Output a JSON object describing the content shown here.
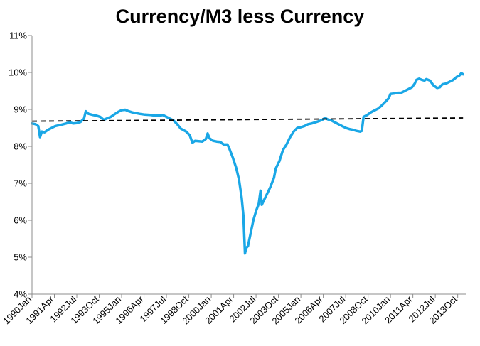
{
  "chart_data": {
    "type": "line",
    "title": "Currency/M3 less Currency",
    "xlabel": "",
    "ylabel": "",
    "ylim": [
      4,
      11
    ],
    "y_ticks": [
      4,
      5,
      6,
      7,
      8,
      9,
      10,
      11
    ],
    "y_tick_format": "percent",
    "x_range": [
      1990.0,
      2014.2
    ],
    "x_tick_labels": [
      {
        "label": "1990Jan",
        "x": 1990.0
      },
      {
        "label": "1991Apr",
        "x": 1991.25
      },
      {
        "label": "1992Jul",
        "x": 1992.5
      },
      {
        "label": "1993Oct",
        "x": 1993.75
      },
      {
        "label": "1995Jan",
        "x": 1995.0
      },
      {
        "label": "1996Apr",
        "x": 1996.25
      },
      {
        "label": "1997Jul",
        "x": 1997.5
      },
      {
        "label": "1998Oct",
        "x": 1998.75
      },
      {
        "label": "2000Jan",
        "x": 2000.0
      },
      {
        "label": "2001Apr",
        "x": 2001.25
      },
      {
        "label": "2002Jul",
        "x": 2002.5
      },
      {
        "label": "2003Oct",
        "x": 2003.75
      },
      {
        "label": "2005Jan",
        "x": 2005.0
      },
      {
        "label": "2006Apr",
        "x": 2006.25
      },
      {
        "label": "2007Jul",
        "x": 2007.5
      },
      {
        "label": "2008Oct",
        "x": 2008.75
      },
      {
        "label": "2010Jan",
        "x": 2010.0
      },
      {
        "label": "2011Apr",
        "x": 2011.25
      },
      {
        "label": "2012Jul",
        "x": 2012.5
      },
      {
        "label": "2013Oct",
        "x": 2013.75
      }
    ],
    "grid": false,
    "legend": "none",
    "series": [
      {
        "color": "#1aa7e6",
        "style": "solid",
        "points": [
          [
            1990.0,
            8.62
          ],
          [
            1990.2,
            8.6
          ],
          [
            1990.35,
            8.55
          ],
          [
            1990.45,
            8.25
          ],
          [
            1990.55,
            8.4
          ],
          [
            1990.7,
            8.38
          ],
          [
            1990.9,
            8.45
          ],
          [
            1991.1,
            8.5
          ],
          [
            1991.3,
            8.55
          ],
          [
            1991.6,
            8.58
          ],
          [
            1991.9,
            8.62
          ],
          [
            1992.1,
            8.65
          ],
          [
            1992.3,
            8.62
          ],
          [
            1992.5,
            8.63
          ],
          [
            1992.7,
            8.66
          ],
          [
            1992.9,
            8.75
          ],
          [
            1993.0,
            8.95
          ],
          [
            1993.15,
            8.88
          ],
          [
            1993.4,
            8.85
          ],
          [
            1993.6,
            8.83
          ],
          [
            1993.8,
            8.8
          ],
          [
            1994.0,
            8.72
          ],
          [
            1994.2,
            8.76
          ],
          [
            1994.4,
            8.8
          ],
          [
            1994.6,
            8.87
          ],
          [
            1994.8,
            8.93
          ],
          [
            1995.0,
            8.98
          ],
          [
            1995.2,
            8.99
          ],
          [
            1995.4,
            8.95
          ],
          [
            1995.6,
            8.92
          ],
          [
            1995.8,
            8.9
          ],
          [
            1996.0,
            8.88
          ],
          [
            1996.3,
            8.86
          ],
          [
            1996.6,
            8.85
          ],
          [
            1996.9,
            8.83
          ],
          [
            1997.1,
            8.83
          ],
          [
            1997.3,
            8.85
          ],
          [
            1997.5,
            8.8
          ],
          [
            1997.7,
            8.75
          ],
          [
            1997.9,
            8.7
          ],
          [
            1998.1,
            8.6
          ],
          [
            1998.3,
            8.48
          ],
          [
            1998.6,
            8.4
          ],
          [
            1998.8,
            8.3
          ],
          [
            1998.95,
            8.1
          ],
          [
            1999.1,
            8.15
          ],
          [
            1999.3,
            8.14
          ],
          [
            1999.5,
            8.13
          ],
          [
            1999.7,
            8.2
          ],
          [
            1999.8,
            8.35
          ],
          [
            1999.9,
            8.22
          ],
          [
            2000.1,
            8.15
          ],
          [
            2000.3,
            8.13
          ],
          [
            2000.5,
            8.12
          ],
          [
            2000.7,
            8.05
          ],
          [
            2000.9,
            8.05
          ],
          [
            2001.0,
            7.95
          ],
          [
            2001.2,
            7.7
          ],
          [
            2001.4,
            7.4
          ],
          [
            2001.55,
            7.1
          ],
          [
            2001.7,
            6.6
          ],
          [
            2001.8,
            6.1
          ],
          [
            2001.88,
            5.1
          ],
          [
            2001.95,
            5.25
          ],
          [
            2002.05,
            5.3
          ],
          [
            2002.2,
            5.65
          ],
          [
            2002.35,
            6.0
          ],
          [
            2002.5,
            6.25
          ],
          [
            2002.65,
            6.45
          ],
          [
            2002.75,
            6.8
          ],
          [
            2002.82,
            6.42
          ],
          [
            2002.95,
            6.55
          ],
          [
            2003.1,
            6.7
          ],
          [
            2003.3,
            6.9
          ],
          [
            2003.5,
            7.15
          ],
          [
            2003.6,
            7.4
          ],
          [
            2003.8,
            7.6
          ],
          [
            2004.0,
            7.9
          ],
          [
            2004.2,
            8.05
          ],
          [
            2004.4,
            8.25
          ],
          [
            2004.6,
            8.4
          ],
          [
            2004.8,
            8.5
          ],
          [
            2005.0,
            8.52
          ],
          [
            2005.2,
            8.55
          ],
          [
            2005.4,
            8.6
          ],
          [
            2005.6,
            8.62
          ],
          [
            2005.8,
            8.65
          ],
          [
            2006.0,
            8.68
          ],
          [
            2006.2,
            8.72
          ],
          [
            2006.35,
            8.77
          ],
          [
            2006.5,
            8.73
          ],
          [
            2006.7,
            8.7
          ],
          [
            2006.9,
            8.65
          ],
          [
            2007.1,
            8.6
          ],
          [
            2007.3,
            8.55
          ],
          [
            2007.5,
            8.5
          ],
          [
            2007.7,
            8.47
          ],
          [
            2007.9,
            8.45
          ],
          [
            2008.1,
            8.42
          ],
          [
            2008.3,
            8.4
          ],
          [
            2008.4,
            8.42
          ],
          [
            2008.5,
            8.8
          ],
          [
            2008.7,
            8.85
          ],
          [
            2008.9,
            8.92
          ],
          [
            2009.1,
            8.97
          ],
          [
            2009.3,
            9.02
          ],
          [
            2009.5,
            9.1
          ],
          [
            2009.7,
            9.2
          ],
          [
            2009.9,
            9.3
          ],
          [
            2010.0,
            9.42
          ],
          [
            2010.2,
            9.43
          ],
          [
            2010.4,
            9.45
          ],
          [
            2010.6,
            9.45
          ],
          [
            2010.8,
            9.5
          ],
          [
            2011.0,
            9.55
          ],
          [
            2011.2,
            9.6
          ],
          [
            2011.35,
            9.7
          ],
          [
            2011.45,
            9.8
          ],
          [
            2011.6,
            9.83
          ],
          [
            2011.75,
            9.8
          ],
          [
            2011.9,
            9.78
          ],
          [
            2012.0,
            9.82
          ],
          [
            2012.2,
            9.78
          ],
          [
            2012.4,
            9.65
          ],
          [
            2012.6,
            9.58
          ],
          [
            2012.75,
            9.6
          ],
          [
            2012.9,
            9.68
          ],
          [
            2013.1,
            9.7
          ],
          [
            2013.3,
            9.75
          ],
          [
            2013.5,
            9.8
          ],
          [
            2013.7,
            9.88
          ],
          [
            2013.85,
            9.92
          ],
          [
            2013.95,
            9.98
          ],
          [
            2014.05,
            9.95
          ]
        ]
      },
      {
        "color": "#000000",
        "style": "dashed",
        "points": [
          [
            1990.0,
            8.68
          ],
          [
            2014.05,
            8.77
          ]
        ]
      }
    ]
  }
}
